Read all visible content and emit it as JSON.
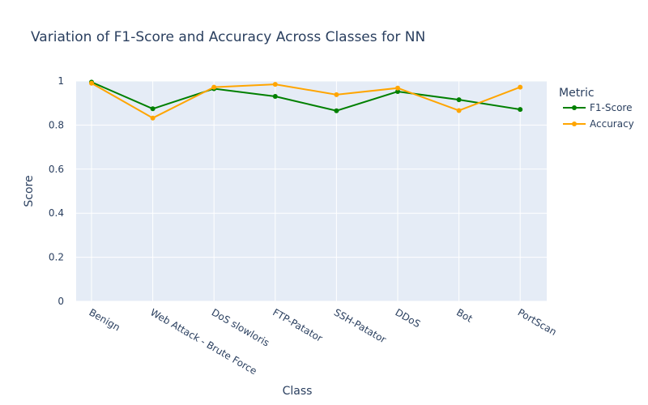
{
  "chart_data": {
    "type": "line",
    "title": "Variation of F1-Score and Accuracy Across Classes for NN",
    "xlabel": "Class",
    "ylabel": "Score",
    "ylim": [
      0,
      1
    ],
    "yticks": [
      0,
      0.2,
      0.4,
      0.6,
      0.8,
      1
    ],
    "ytick_labels": [
      "0",
      "0.2",
      "0.4",
      "0.6",
      "0.8",
      "1"
    ],
    "grid": true,
    "legend_title": "Metric",
    "legend_position": "top-right outside",
    "categories": [
      "Benign",
      "Web Attack - Brute Force",
      "DoS slowloris",
      "FTP-Patator",
      "SSH-Patator",
      "DDoS",
      "Bot",
      "PortScan"
    ],
    "series": [
      {
        "name": "F1-Score",
        "color": "#008000",
        "values": [
          0.995,
          0.874,
          0.965,
          0.93,
          0.865,
          0.952,
          0.915,
          0.871
        ]
      },
      {
        "name": "Accuracy",
        "color": "#FFA500",
        "values": [
          0.99,
          0.832,
          0.972,
          0.985,
          0.938,
          0.968,
          0.866,
          0.972
        ]
      }
    ]
  }
}
